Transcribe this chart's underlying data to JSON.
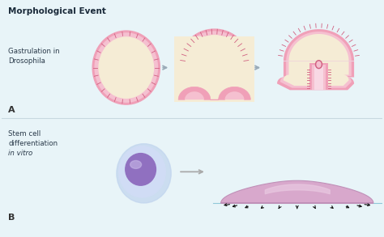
{
  "title": "Morphological Event",
  "label_A": "A",
  "label_B": "B",
  "label_gastrulation": "Gastrulation in\nDrosophila",
  "label_stemcell": "Stem cell\ndifferentiation",
  "label_invitro": "in vitro",
  "bg_color": "#e8f4f8",
  "divider_color": "#c8d8e0",
  "pink_outer": "#f0a0b8",
  "pink_mid": "#f5c0d0",
  "pink_inner": "#f8d8e4",
  "pink_deep": "#d06080",
  "cream": "#f5ecd5",
  "arrow_gray": "#9aabb8",
  "cell_outer_blue": "#c0d4ee",
  "cell_body_blue": "#d0dcf5",
  "nucleus_purple": "#9070c0",
  "nucleus_light": "#b090d8",
  "flat_pink": "#d8a8cc",
  "flat_pink_light": "#e8c8e0",
  "flat_pink_edge": "#c090b8",
  "surface_line": "#90c8d8"
}
